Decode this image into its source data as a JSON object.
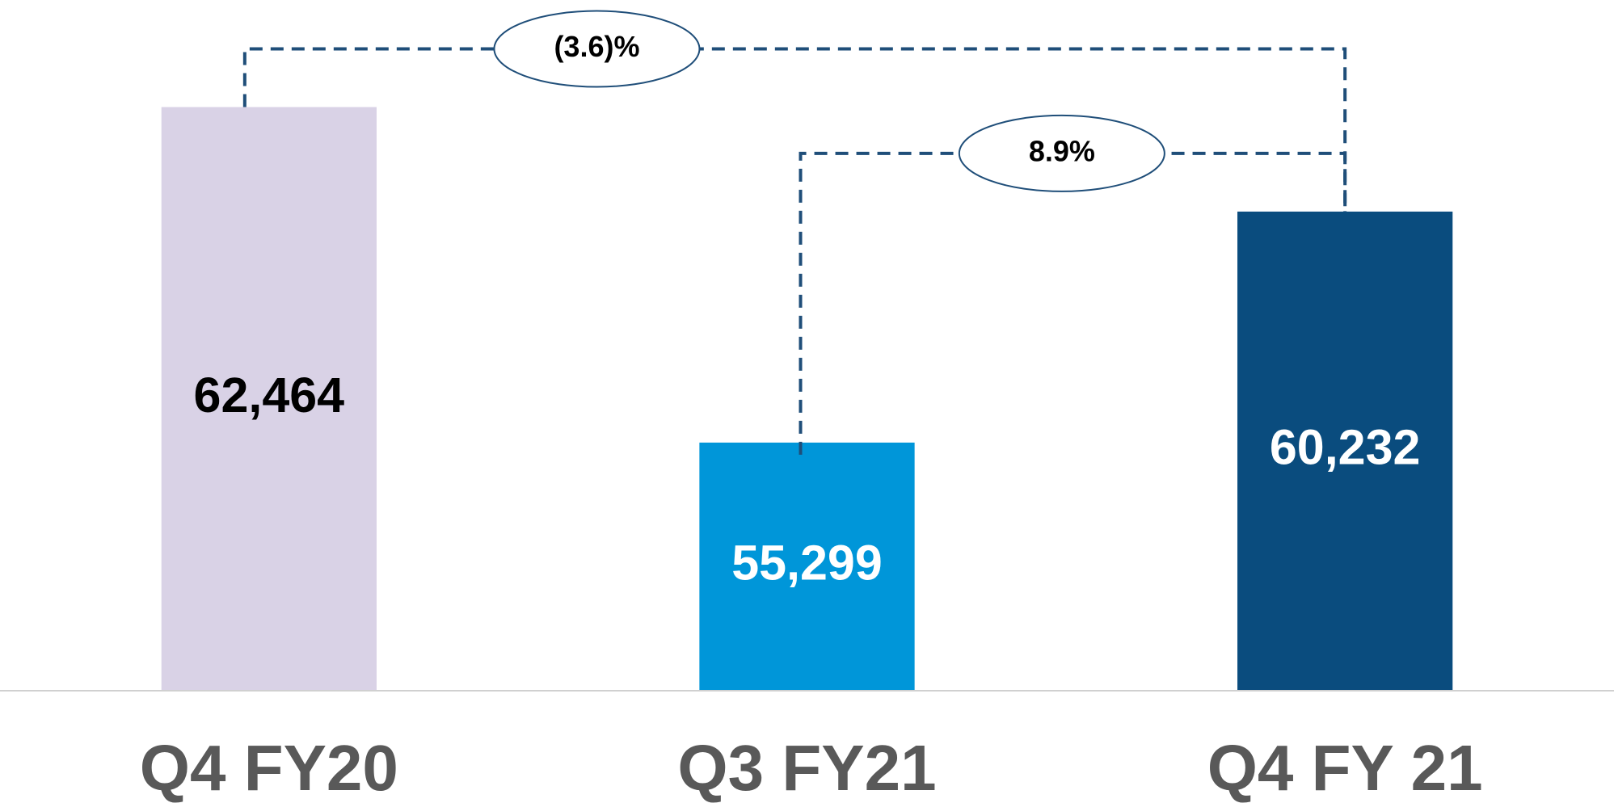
{
  "chart_data": {
    "type": "bar",
    "categories": [
      "Q4 FY20",
      "Q3 FY21",
      "Q4 FY 21"
    ],
    "values": [
      62464,
      55299,
      60232
    ],
    "value_labels": [
      "62,464",
      "55,299",
      "60,232"
    ],
    "colors": [
      "#d9d2e6",
      "#0096d9",
      "#0a4c7e"
    ],
    "ylim": [
      50000,
      64000
    ],
    "grid": false,
    "annotations": [
      {
        "text": "(3.6)%",
        "from": "Q4 FY20",
        "to": "Q4 FY 21"
      },
      {
        "text": "8.9%",
        "from": "Q3 FY21",
        "to": "Q4 FY 21"
      }
    ]
  }
}
